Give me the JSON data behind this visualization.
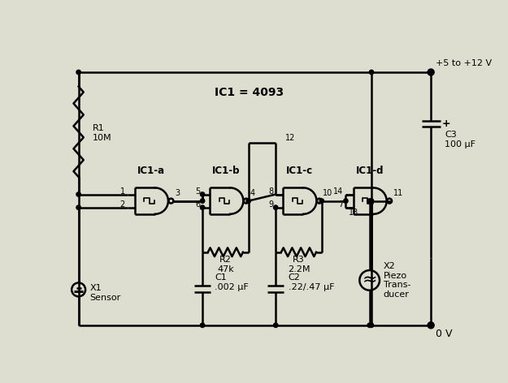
{
  "background_color": "#deded0",
  "line_color": "#000000",
  "text_color": "#000000",
  "labels": {
    "ic1_eq": "IC1 = 4093",
    "ic1a": "IC1-a",
    "ic1b": "IC1-b",
    "ic1c": "IC1-c",
    "ic1d": "IC1-d",
    "r1": "R1\n10M",
    "r2": "R2\n47k",
    "r3": "R3\n2.2M",
    "c1": "C1\n.002 μF",
    "c2": "C2\n.22/.47 μF",
    "c3": "C3\n100 μF",
    "x1": "X1\nSensor",
    "x2": "X2\nPiezo\nTrans-\nducer",
    "vcc": "+5 to +12 V",
    "gnd": "0 V",
    "plus": "+"
  }
}
